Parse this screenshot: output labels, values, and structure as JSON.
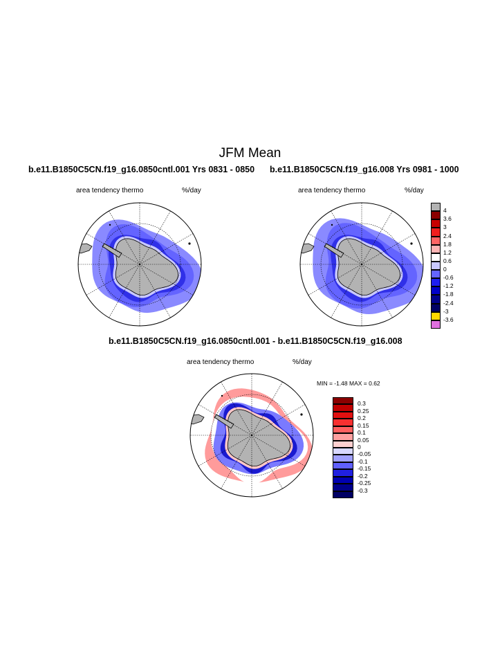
{
  "main_title": "JFM Mean",
  "panels": [
    {
      "title": "b.e11.B1850C5CN.f19_g16.0850cntl.001  Yrs 0831 - 0850",
      "left_label": "area tendency thermo",
      "right_label": "%/day"
    },
    {
      "title": "b.e11.B1850C5CN.f19_g16.008  Yrs 0981 - 1000",
      "left_label": "area tendency thermo",
      "right_label": "%/day"
    },
    {
      "title": "b.e11.B1850C5CN.f19_g16.0850cntl.001 - b.e11.B1850C5CN.f19_g16.008",
      "left_label": "area tendency thermo",
      "right_label": "%/day",
      "minmax": "MIN =  -1.48 MAX =   0.62"
    }
  ],
  "colorbar_top": {
    "labels": [
      "4",
      "3.6",
      "3",
      "2.4",
      "1.8",
      "1.2",
      "0.6",
      "0",
      "-0.6",
      "-1.2",
      "-1.8",
      "-2.4",
      "-3",
      "-3.6"
    ],
    "colors": [
      "#b3b3b3",
      "#8b0000",
      "#c80000",
      "#f01e1e",
      "#ff6464",
      "#ffb4b4",
      "#ffffff",
      "#c8c8ff",
      "#6464ff",
      "#1e1ef0",
      "#0000c8",
      "#00008b",
      "#000064",
      "#ffd700",
      "#e070e0"
    ]
  },
  "colorbar_diff": {
    "labels": [
      "0.3",
      "0.25",
      "0.2",
      "0.15",
      "0.1",
      "0.05",
      "0",
      "-0.05",
      "-0.1",
      "-0.15",
      "-0.2",
      "-0.25",
      "-0.3"
    ],
    "colors": [
      "#8b0000",
      "#c00000",
      "#e01010",
      "#f83030",
      "#ff6060",
      "#ffa0a0",
      "#ffd0d0",
      "#d8d8ff",
      "#a0a0ff",
      "#6060ff",
      "#2020e0",
      "#0000b0",
      "#00008b",
      "#000064"
    ]
  }
}
